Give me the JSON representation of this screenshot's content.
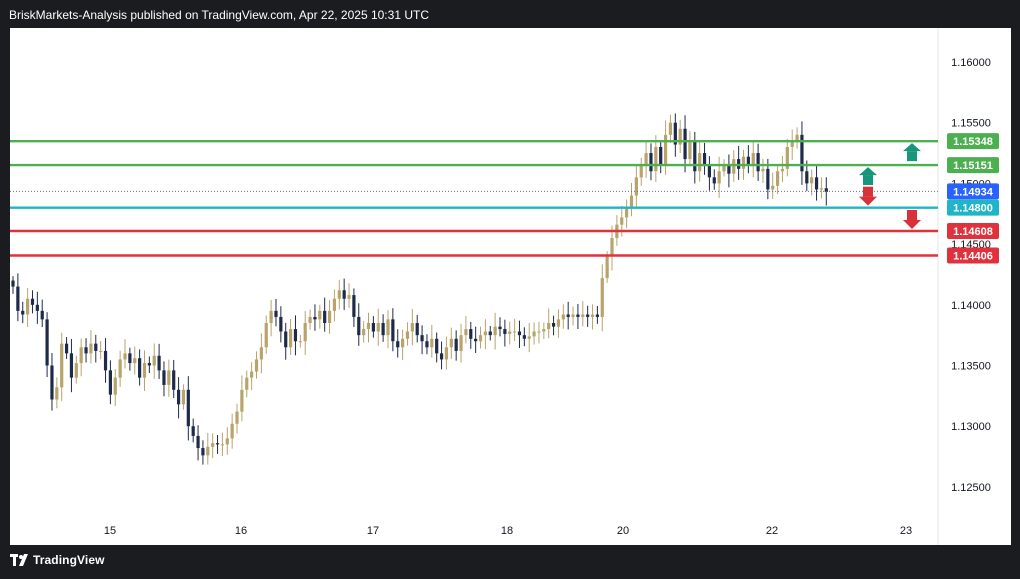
{
  "header": {
    "publisher_line": "BriskMarkets-Analysis published on TradingView.com, Apr 22, 2025 10:31 UTC"
  },
  "footer": {
    "brand": "TradingView"
  },
  "colors": {
    "bull": "#b8a46b",
    "bear": "#1e2a4a",
    "green_level": "#4caf50",
    "red_level": "#e0323c",
    "cyan_level": "#1fb4c8",
    "current_price": "#2962ff",
    "arrow_up": "#16967a",
    "arrow_down": "#d7313a"
  },
  "chart_data": {
    "type": "candlestick",
    "instrument": "",
    "x_ticks": [
      "15",
      "16",
      "17",
      "18",
      "20",
      "22",
      "23"
    ],
    "y_ticks": [
      "1.16000",
      "1.15500",
      "1.15000",
      "1.14500",
      "1.14000",
      "1.13500",
      "1.13000",
      "1.12500"
    ],
    "ylim": [
      1.12,
      1.164
    ],
    "levels": [
      {
        "label": "1.15348",
        "value": 1.15348,
        "color": "green"
      },
      {
        "label": "1.15151",
        "value": 1.15151,
        "color": "green"
      },
      {
        "label": "1.14800",
        "value": 1.148,
        "color": "cyan"
      },
      {
        "label": "1.14608",
        "value": 1.14608,
        "color": "red"
      },
      {
        "label": "1.14406",
        "value": 1.14406,
        "color": "red"
      }
    ],
    "current_price": {
      "label": "1.14934",
      "value": 1.14934
    },
    "arrows": [
      {
        "direction": "up",
        "level": 1.15348
      },
      {
        "direction": "up",
        "level": 1.15151
      },
      {
        "direction": "down",
        "level": 1.148
      },
      {
        "direction": "down",
        "level": 1.14608
      }
    ],
    "closes": [
      1.1415,
      1.1395,
      1.1392,
      1.1405,
      1.14,
      1.1395,
      1.1388,
      1.135,
      1.1322,
      1.1332,
      1.1368,
      1.136,
      1.134,
      1.1352,
      1.1365,
      1.136,
      1.1368,
      1.1362,
      1.1362,
      1.1346,
      1.1326,
      1.134,
      1.1355,
      1.136,
      1.1352,
      1.1356,
      1.134,
      1.1352,
      1.135,
      1.1358,
      1.1346,
      1.1334,
      1.1346,
      1.133,
      1.1318,
      1.133,
      1.13,
      1.1292,
      1.1282,
      1.1276,
      1.1283,
      1.1286,
      1.1285,
      1.1285,
      1.129,
      1.1302,
      1.1312,
      1.133,
      1.134,
      1.1345,
      1.1355,
      1.1365,
      1.1385,
      1.1395,
      1.139,
      1.1378,
      1.1365,
      1.138,
      1.137,
      1.137,
      1.1385,
      1.139,
      1.1388,
      1.1395,
      1.1385,
      1.1395,
      1.1405,
      1.1412,
      1.1405,
      1.1408,
      1.139,
      1.1375,
      1.138,
      1.1385,
      1.1378,
      1.1385,
      1.1375,
      1.1388,
      1.137,
      1.1365,
      1.1372,
      1.1378,
      1.1385,
      1.1375,
      1.137,
      1.1365,
      1.1372,
      1.136,
      1.1355,
      1.1365,
      1.1372,
      1.1362,
      1.1375,
      1.138,
      1.1372,
      1.137,
      1.1375,
      1.1378,
      1.1375,
      1.1382,
      1.138,
      1.1376,
      1.1378,
      1.1378,
      1.1375,
      1.1372,
      1.1374,
      1.1378,
      1.1378,
      1.138,
      1.1385,
      1.1382,
      1.1388,
      1.1392,
      1.139,
      1.1392,
      1.139,
      1.1392,
      1.139,
      1.1392,
      1.139,
      1.1422,
      1.144,
      1.1455,
      1.1466,
      1.1472,
      1.148,
      1.149,
      1.1505,
      1.1515,
      1.1525,
      1.151,
      1.153,
      1.1515,
      1.154,
      1.155,
      1.1532,
      1.1545,
      1.152,
      1.1535,
      1.151,
      1.1525,
      1.1515,
      1.1505,
      1.15,
      1.151,
      1.1515,
      1.1508,
      1.152,
      1.1512,
      1.1522,
      1.1515,
      1.1525,
      1.151,
      1.1512,
      1.1495,
      1.1498,
      1.151,
      1.1512,
      1.153,
      1.1535,
      1.154,
      1.151,
      1.15,
      1.1505,
      1.1495,
      1.1496,
      1.1493
    ]
  }
}
